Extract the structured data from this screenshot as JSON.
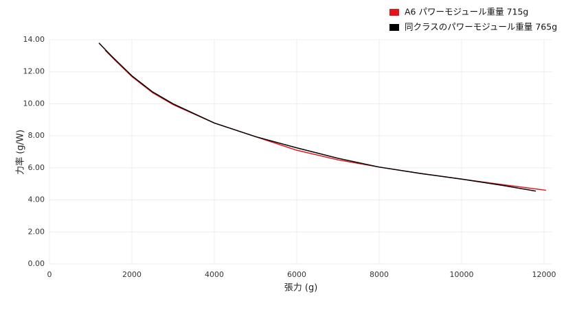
{
  "chart_data": {
    "type": "line",
    "x_label": "張力 (g)",
    "y_label": "力率 (g/W)",
    "xlim": [
      0,
      12200
    ],
    "ylim": [
      0,
      14
    ],
    "xticks": [
      0,
      2000,
      4000,
      6000,
      8000,
      10000,
      12000
    ],
    "yticks": [
      {
        "value": 0,
        "label": "0.00"
      },
      {
        "value": 2,
        "label": "2.00"
      },
      {
        "value": 4,
        "label": "4.00"
      },
      {
        "value": 6,
        "label": "6.00"
      },
      {
        "value": 8,
        "label": "8.00"
      },
      {
        "value": 10,
        "label": "10.00"
      },
      {
        "value": 12,
        "label": "12.00"
      },
      {
        "value": 14,
        "label": "14.00"
      }
    ],
    "grid": true,
    "legend": "top-right",
    "series": [
      {
        "name": "A6 パワーモジュール重量 715g",
        "color": "#e3141b",
        "x": [
          1350,
          1600,
          2000,
          2500,
          3000,
          4000,
          5000,
          6000,
          7000,
          8000,
          9000,
          10000,
          11000,
          12050
        ],
        "values": [
          13.35,
          12.7,
          11.7,
          10.7,
          9.95,
          8.8,
          7.95,
          7.1,
          6.5,
          6.05,
          5.65,
          5.3,
          4.95,
          4.6
        ]
      },
      {
        "name": "同クラスのパワーモジュール重量 765g",
        "color": "#000000",
        "x": [
          1200,
          1500,
          2000,
          2500,
          3000,
          4000,
          5000,
          6000,
          7000,
          8000,
          9000,
          10000,
          11000,
          11800
        ],
        "values": [
          13.8,
          13.0,
          11.75,
          10.75,
          10.0,
          8.8,
          7.95,
          7.25,
          6.6,
          6.05,
          5.65,
          5.3,
          4.9,
          4.55
        ]
      }
    ]
  }
}
